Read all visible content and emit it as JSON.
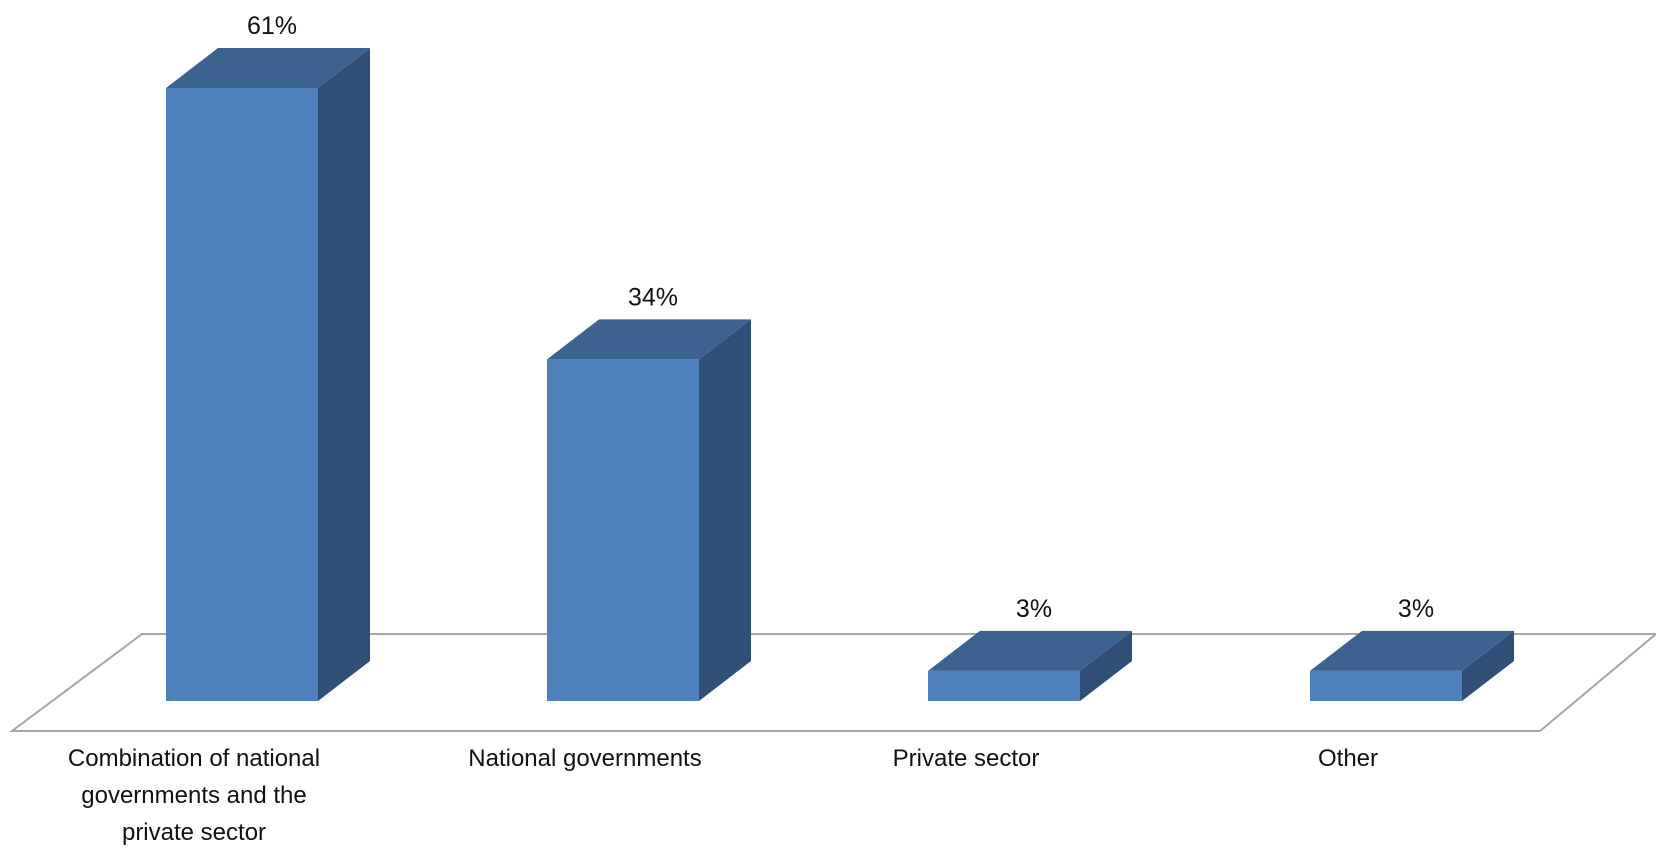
{
  "chart_data": {
    "type": "bar",
    "style": "3d-column",
    "categories": [
      "Combination of national governments and the private sector",
      "National governments",
      "Private sector",
      "Other"
    ],
    "category_label_lines": [
      [
        "Combination of national",
        "governments and the",
        "private sector"
      ],
      [
        "National governments"
      ],
      [
        "Private sector"
      ],
      [
        "Other"
      ]
    ],
    "values": [
      61,
      34,
      3,
      3
    ],
    "data_labels": [
      "61%",
      "34%",
      "3%",
      "3%"
    ],
    "value_unit": "%",
    "title": "",
    "xlabel": "",
    "ylabel": "",
    "ylim": [
      0,
      61
    ],
    "grid": false,
    "legend": "none",
    "colors": {
      "bar_front": "#4f81bd",
      "bar_top": "#3c6390",
      "bar_side": "#2f4f76",
      "floor_edge": "#a6a6a6",
      "background": "#ffffff"
    }
  }
}
